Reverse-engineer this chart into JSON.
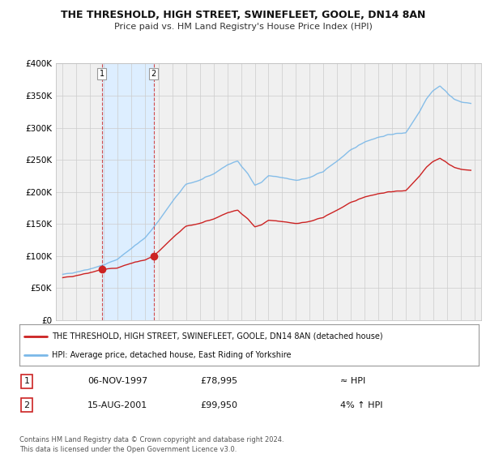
{
  "title": "THE THRESHOLD, HIGH STREET, SWINEFLEET, GOOLE, DN14 8AN",
  "subtitle": "Price paid vs. HM Land Registry's House Price Index (HPI)",
  "legend_line1": "THE THRESHOLD, HIGH STREET, SWINEFLEET, GOOLE, DN14 8AN (detached house)",
  "legend_line2": "HPI: Average price, detached house, East Riding of Yorkshire",
  "footer": "Contains HM Land Registry data © Crown copyright and database right 2024.\nThis data is licensed under the Open Government Licence v3.0.",
  "transaction1_label": "1",
  "transaction1_date": "06-NOV-1997",
  "transaction1_price": "£78,995",
  "transaction1_hpi": "≈ HPI",
  "transaction2_label": "2",
  "transaction2_date": "15-AUG-2001",
  "transaction2_price": "£99,950",
  "transaction2_hpi": "4% ↑ HPI",
  "hpi_color": "#7ab8e8",
  "price_color": "#cc2222",
  "background_color": "#ffffff",
  "plot_bg_color": "#f0f0f0",
  "shading_color": "#ddeeff",
  "grid_color": "#cccccc",
  "transaction1_x": 1997.85,
  "transaction1_y": 78995,
  "transaction2_x": 2001.62,
  "transaction2_y": 99950,
  "ylim": [
    0,
    400000
  ],
  "xlim": [
    1994.5,
    2025.5
  ],
  "yticks": [
    0,
    50000,
    100000,
    150000,
    200000,
    250000,
    300000,
    350000,
    400000
  ],
  "ytick_labels": [
    "£0",
    "£50K",
    "£100K",
    "£150K",
    "£200K",
    "£250K",
    "£300K",
    "£350K",
    "£400K"
  ],
  "xticks": [
    1995,
    1996,
    1997,
    1998,
    1999,
    2000,
    2001,
    2002,
    2003,
    2004,
    2005,
    2006,
    2007,
    2008,
    2009,
    2010,
    2011,
    2012,
    2013,
    2014,
    2015,
    2016,
    2017,
    2018,
    2019,
    2020,
    2021,
    2022,
    2023,
    2024,
    2025
  ],
  "vline1_x": 1997.85,
  "vline2_x": 2001.62
}
